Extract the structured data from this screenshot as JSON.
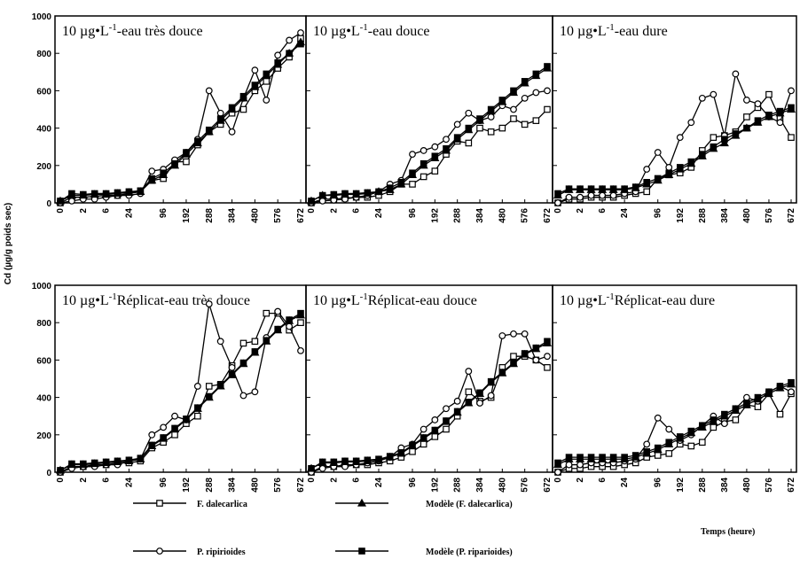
{
  "y_label": "Cd (µg/g poids sec)",
  "x_label": "Temps (heure)",
  "legend": [
    {
      "name": "F. dalecarlica",
      "marker": "square",
      "fill": "#fff"
    },
    {
      "name": "P. ripirioides",
      "marker": "circle",
      "fill": "#fff"
    },
    {
      "name": "Modèle (F. dalecarlica)",
      "marker": "triangle",
      "fill": "#000"
    },
    {
      "name": "Modèle (P. riparioides)",
      "marker": "square",
      "fill": "#000"
    }
  ],
  "x_categories": [
    "0",
    null,
    "2",
    null,
    "6",
    null,
    "24",
    null,
    null,
    "96",
    null,
    "192",
    null,
    "288",
    null,
    "384",
    null,
    "480",
    null,
    "576",
    null,
    "672"
  ],
  "y_axis": {
    "ylim": [
      0,
      1000
    ],
    "yticks": [
      0,
      200,
      400,
      600,
      800,
      1000
    ]
  },
  "chart_data": [
    {
      "type": "line",
      "title": {
        "prefix": "10 µg•L",
        "sup": "-1",
        "suffix": "-eau très douce"
      },
      "series": [
        {
          "values": [
            0,
            30,
            30,
            35,
            40,
            40,
            50,
            60,
            120,
            130,
            220,
            220,
            310,
            380,
            420,
            480,
            500,
            600,
            650,
            720,
            780,
            880
          ]
        },
        {
          "values": [
            0,
            10,
            20,
            20,
            30,
            40,
            40,
            50,
            170,
            180,
            230,
            270,
            340,
            600,
            480,
            380,
            560,
            710,
            550,
            790,
            870,
            910
          ]
        },
        {
          "values": [
            10,
            40,
            40,
            45,
            45,
            50,
            55,
            60,
            120,
            150,
            200,
            260,
            320,
            380,
            440,
            500,
            560,
            620,
            680,
            740,
            800,
            860
          ]
        },
        {
          "values": [
            10,
            50,
            45,
            50,
            50,
            55,
            60,
            65,
            130,
            160,
            210,
            270,
            330,
            390,
            450,
            510,
            570,
            630,
            690,
            750,
            800,
            850
          ]
        }
      ]
    },
    {
      "type": "line",
      "title": {
        "prefix": "10 µg•L",
        "sup": "-1",
        "suffix": "-eau douce"
      },
      "series": [
        {
          "values": [
            0,
            20,
            20,
            25,
            30,
            30,
            40,
            60,
            100,
            100,
            140,
            170,
            260,
            330,
            320,
            400,
            380,
            400,
            450,
            420,
            440,
            500
          ]
        },
        {
          "values": [
            0,
            10,
            15,
            20,
            30,
            40,
            60,
            100,
            120,
            260,
            280,
            300,
            340,
            420,
            480,
            440,
            460,
            520,
            500,
            560,
            590,
            600
          ]
        },
        {
          "values": [
            10,
            40,
            40,
            45,
            45,
            50,
            60,
            70,
            100,
            150,
            200,
            240,
            280,
            340,
            390,
            440,
            490,
            540,
            590,
            640,
            680,
            720
          ]
        },
        {
          "values": [
            10,
            40,
            45,
            50,
            50,
            55,
            60,
            80,
            110,
            160,
            210,
            250,
            290,
            350,
            400,
            450,
            500,
            550,
            600,
            650,
            690,
            730
          ]
        }
      ]
    },
    {
      "type": "line",
      "title": {
        "prefix": "10 µg•L",
        "sup": "-1",
        "suffix": "-eau dure"
      },
      "series": [
        {
          "values": [
            0,
            20,
            20,
            30,
            30,
            30,
            40,
            50,
            60,
            130,
            150,
            160,
            190,
            280,
            350,
            360,
            380,
            460,
            510,
            580,
            450,
            350
          ]
        },
        {
          "values": [
            0,
            30,
            30,
            40,
            40,
            40,
            50,
            60,
            180,
            270,
            190,
            350,
            430,
            560,
            580,
            360,
            690,
            550,
            530,
            460,
            430,
            600
          ]
        },
        {
          "values": [
            40,
            70,
            70,
            70,
            70,
            70,
            70,
            80,
            100,
            120,
            150,
            180,
            210,
            250,
            290,
            320,
            360,
            400,
            430,
            460,
            480,
            500
          ]
        },
        {
          "values": [
            50,
            75,
            75,
            75,
            75,
            75,
            75,
            85,
            110,
            130,
            160,
            190,
            220,
            260,
            300,
            340,
            370,
            400,
            440,
            470,
            490,
            510
          ]
        }
      ]
    },
    {
      "type": "line",
      "title": {
        "prefix": "10 µg•L",
        "sup": "-1",
        "suffix": "Réplicat-eau très douce"
      },
      "series": [
        {
          "values": [
            0,
            30,
            30,
            40,
            40,
            50,
            50,
            60,
            130,
            160,
            200,
            260,
            300,
            460,
            470,
            570,
            690,
            700,
            850,
            850,
            760,
            800
          ]
        },
        {
          "values": [
            0,
            20,
            30,
            30,
            40,
            40,
            60,
            70,
            200,
            240,
            300,
            280,
            460,
            900,
            700,
            560,
            410,
            430,
            720,
            860,
            780,
            650
          ]
        },
        {
          "values": [
            10,
            40,
            40,
            45,
            50,
            55,
            60,
            70,
            140,
            180,
            230,
            280,
            340,
            400,
            460,
            520,
            580,
            640,
            700,
            760,
            810,
            840
          ]
        },
        {
          "values": [
            10,
            45,
            45,
            50,
            55,
            60,
            65,
            75,
            145,
            185,
            235,
            285,
            345,
            405,
            465,
            525,
            585,
            645,
            705,
            765,
            815,
            850
          ]
        }
      ]
    },
    {
      "type": "line",
      "title": {
        "prefix": "10 µg•L",
        "sup": "-1",
        "suffix": "Réplicat-eau douce"
      },
      "series": [
        {
          "values": [
            0,
            30,
            30,
            40,
            40,
            40,
            50,
            60,
            80,
            110,
            150,
            190,
            230,
            300,
            430,
            380,
            400,
            560,
            620,
            620,
            600,
            560
          ]
        },
        {
          "values": [
            0,
            20,
            30,
            30,
            40,
            50,
            60,
            80,
            130,
            150,
            230,
            280,
            340,
            380,
            540,
            370,
            410,
            730,
            740,
            740,
            600,
            620
          ]
        },
        {
          "values": [
            20,
            50,
            50,
            55,
            55,
            60,
            65,
            80,
            100,
            140,
            180,
            220,
            270,
            320,
            370,
            420,
            480,
            530,
            580,
            630,
            660,
            690
          ]
        },
        {
          "values": [
            20,
            55,
            55,
            60,
            60,
            65,
            70,
            85,
            105,
            145,
            185,
            225,
            275,
            325,
            375,
            425,
            485,
            535,
            585,
            635,
            665,
            700
          ]
        }
      ]
    },
    {
      "type": "line",
      "title": {
        "prefix": "10 µg•L",
        "sup": "-1",
        "suffix": "Réplicat-eau dure"
      },
      "series": [
        {
          "values": [
            0,
            20,
            20,
            30,
            30,
            30,
            40,
            50,
            80,
            90,
            100,
            150,
            140,
            160,
            240,
            270,
            280,
            360,
            350,
            420,
            310,
            420
          ]
        },
        {
          "values": [
            0,
            40,
            40,
            50,
            50,
            50,
            60,
            70,
            150,
            290,
            230,
            170,
            200,
            250,
            300,
            260,
            340,
            400,
            380,
            430,
            460,
            430
          ]
        },
        {
          "values": [
            40,
            70,
            70,
            70,
            70,
            70,
            70,
            80,
            100,
            120,
            150,
            180,
            210,
            240,
            270,
            300,
            330,
            360,
            390,
            420,
            450,
            470
          ]
        },
        {
          "values": [
            50,
            80,
            80,
            80,
            80,
            80,
            80,
            90,
            110,
            130,
            160,
            190,
            220,
            250,
            280,
            310,
            340,
            370,
            400,
            430,
            460,
            480
          ]
        }
      ]
    }
  ]
}
